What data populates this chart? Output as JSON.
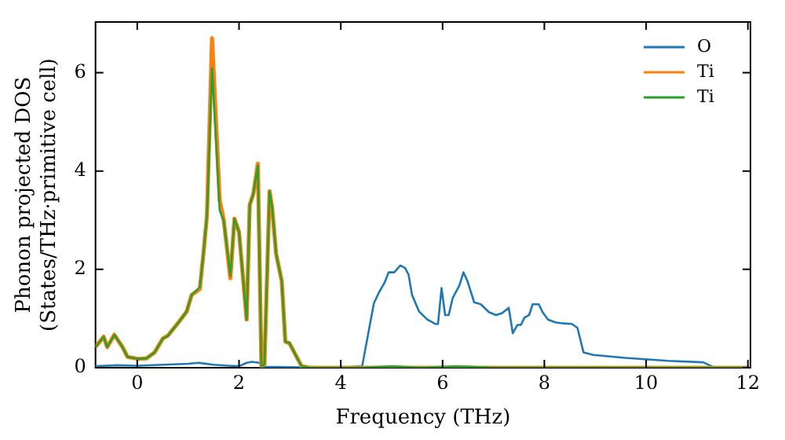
{
  "chart_data": {
    "type": "line",
    "xlabel": "Frequency (THz)",
    "ylabel": "Phonon projected DOS (States/THz·primitive cell)",
    "xlim": [
      -0.82,
      12.05
    ],
    "ylim": [
      0,
      7.03
    ],
    "xticks": [
      0,
      2,
      4,
      6,
      8,
      10,
      12
    ],
    "yticks": [
      0,
      2,
      4,
      6
    ],
    "grid": false,
    "legend": "top right",
    "marker": "none",
    "line_style": "solid",
    "series": [
      {
        "name": "O",
        "color": "#1f77b4",
        "x": [
          -0.82,
          -0.4,
          0,
          0.5,
          1.0,
          1.2,
          1.5,
          1.8,
          2.0,
          2.15,
          2.25,
          2.4,
          2.5,
          3.0,
          4.0,
          4.42,
          4.65,
          4.75,
          4.86,
          4.94,
          5.05,
          5.17,
          5.26,
          5.33,
          5.4,
          5.54,
          5.7,
          5.86,
          5.91,
          5.98,
          6.05,
          6.12,
          6.2,
          6.33,
          6.41,
          6.49,
          6.62,
          6.75,
          6.91,
          7.05,
          7.17,
          7.3,
          7.38,
          7.47,
          7.54,
          7.61,
          7.7,
          7.77,
          7.89,
          7.96,
          8.07,
          8.23,
          8.38,
          8.54,
          8.65,
          8.77,
          8.96,
          9.59,
          10.43,
          11.12,
          11.33,
          12.05
        ],
        "values": [
          0.03,
          0.05,
          0.04,
          0.06,
          0.08,
          0.1,
          0.06,
          0.04,
          0.03,
          0.1,
          0.12,
          0.1,
          0.02,
          0.01,
          0.0,
          0.03,
          1.31,
          1.53,
          1.73,
          1.94,
          1.94,
          2.08,
          2.03,
          1.9,
          1.48,
          1.14,
          0.98,
          0.89,
          0.89,
          1.62,
          1.07,
          1.07,
          1.42,
          1.67,
          1.94,
          1.76,
          1.33,
          1.29,
          1.13,
          1.07,
          1.11,
          1.22,
          0.7,
          0.87,
          0.87,
          1.02,
          1.07,
          1.29,
          1.29,
          1.14,
          0.98,
          0.92,
          0.9,
          0.89,
          0.81,
          0.31,
          0.26,
          0.2,
          0.14,
          0.11,
          0.01,
          0.0
        ]
      },
      {
        "name": "Ti",
        "color": "#ff7f0e",
        "x": [
          -0.82,
          -0.66,
          -0.59,
          -0.45,
          -0.29,
          -0.19,
          0.02,
          0.18,
          0.34,
          0.5,
          0.6,
          0.81,
          0.97,
          1.07,
          1.23,
          1.3,
          1.37,
          1.47,
          1.62,
          1.7,
          1.83,
          1.91,
          2.0,
          2.15,
          2.21,
          2.28,
          2.37,
          2.44,
          2.5,
          2.6,
          2.65,
          2.73,
          2.84,
          2.91,
          2.99,
          3.23,
          3.4,
          4.4,
          12.05
        ],
        "values": [
          0.42,
          0.63,
          0.42,
          0.67,
          0.42,
          0.22,
          0.18,
          0.19,
          0.31,
          0.59,
          0.65,
          0.92,
          1.14,
          1.48,
          1.6,
          2.31,
          3.09,
          6.7,
          3.4,
          3.0,
          1.82,
          3.03,
          2.76,
          0.98,
          3.31,
          3.53,
          4.15,
          0.03,
          0.07,
          3.59,
          3.26,
          2.31,
          1.76,
          0.53,
          0.5,
          0.03,
          0.0,
          0.0,
          0.0
        ]
      },
      {
        "name": "Ti",
        "color": "#2ca02c",
        "x": [
          -0.82,
          -0.66,
          -0.59,
          -0.45,
          -0.29,
          -0.19,
          0.02,
          0.18,
          0.34,
          0.5,
          0.6,
          0.81,
          0.97,
          1.07,
          1.23,
          1.3,
          1.37,
          1.47,
          1.62,
          1.7,
          1.83,
          1.91,
          2.0,
          2.15,
          2.21,
          2.28,
          2.37,
          2.44,
          2.5,
          2.6,
          2.65,
          2.73,
          2.84,
          2.91,
          2.99,
          3.23,
          3.4,
          4.4,
          5.0,
          5.6,
          6.3,
          7.0,
          12.05
        ],
        "values": [
          0.42,
          0.63,
          0.42,
          0.67,
          0.42,
          0.22,
          0.18,
          0.19,
          0.31,
          0.59,
          0.65,
          0.92,
          1.14,
          1.48,
          1.64,
          2.31,
          3.09,
          6.09,
          3.2,
          2.98,
          1.87,
          3.03,
          2.76,
          0.98,
          3.31,
          3.53,
          4.11,
          0.03,
          0.07,
          3.59,
          3.26,
          2.31,
          1.76,
          0.53,
          0.5,
          0.03,
          0.0,
          0.0,
          0.03,
          0.0,
          0.03,
          0.0,
          0.0
        ]
      }
    ]
  }
}
